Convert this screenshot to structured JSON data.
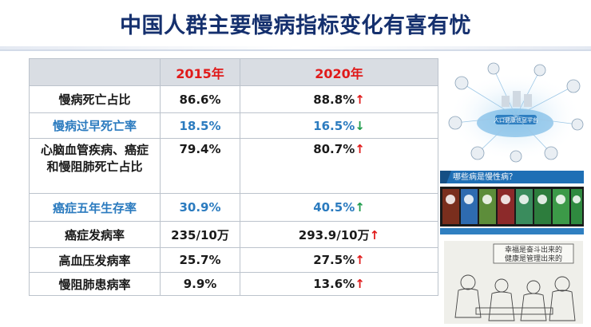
{
  "slide": {
    "title": "中国人群主要慢病指标变化有喜有忧"
  },
  "table": {
    "headers": [
      "",
      "2015年",
      "2020年"
    ],
    "rows": [
      {
        "label": "慢病死亡占比",
        "y2015": "86.6%",
        "y2020": "88.8%",
        "trend": "↑",
        "trend_dir": "up",
        "highlight": false
      },
      {
        "label": "慢病过早死亡率",
        "y2015": "18.5%",
        "y2020": "16.5%",
        "trend": "↓",
        "trend_dir": "down",
        "highlight": true
      },
      {
        "label_line1": "心脑血管疾病、癌症",
        "label_line2": "和慢阻肺死亡占比",
        "y2015": "79.4%",
        "y2020": "80.7%",
        "trend": "↑",
        "trend_dir": "up",
        "highlight": false
      },
      {
        "label": "癌症五年生存率",
        "y2015": "30.9%",
        "y2020": "40.5%",
        "trend": "↑",
        "trend_dir": "up-green",
        "highlight": true
      },
      {
        "label": "癌症发病率",
        "y2015": "235/10万",
        "y2020": "293.9/10万",
        "trend": "↑",
        "trend_dir": "up",
        "highlight": false
      },
      {
        "label": "高血压发病率",
        "y2015": "25.7%",
        "y2020": "27.5%",
        "trend": "↑",
        "trend_dir": "up",
        "highlight": false
      },
      {
        "label": "慢阻肺患病率",
        "y2015": "9.9%",
        "y2020": "13.6%",
        "trend": "↑",
        "trend_dir": "up",
        "highlight": false
      }
    ]
  },
  "illustrations": {
    "platform_label": "人口健康信息平台",
    "banner_question": "哪些病是慢性病？",
    "sketch_caption_line1": "幸福是奋斗出来的",
    "sketch_caption_line2": "健康是管理出来的"
  },
  "colors": {
    "title": "#15306e",
    "header_bg": "#d9dde3",
    "year_header": "#e01a1a",
    "highlight_text": "#2b7bbf",
    "trend_up": "#e01a1a",
    "trend_down": "#1e9b4b"
  }
}
